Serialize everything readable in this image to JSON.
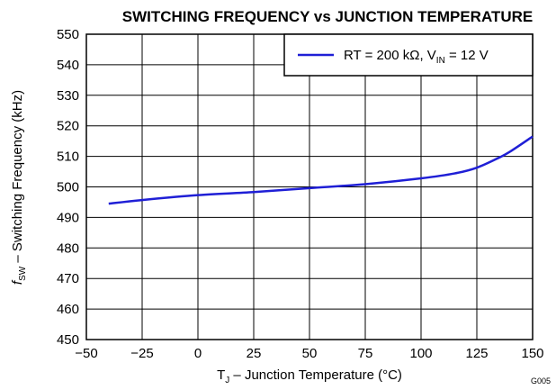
{
  "chart_data": {
    "type": "line",
    "title": "SWITCHING FREQUENCY vs JUNCTION TEMPERATURE",
    "xlabel": {
      "main": "T",
      "sub": "J",
      "rest": " – Junction Temperature (°C)"
    },
    "ylabel": {
      "main": "f",
      "sub": "SW",
      "rest": " – Switching Frequency (kHz)"
    },
    "xlim": [
      -50,
      150
    ],
    "ylim": [
      450,
      550
    ],
    "xticks": [
      -50,
      -25,
      0,
      25,
      50,
      75,
      100,
      125,
      150
    ],
    "xtick_labels": [
      "−50",
      "−25",
      "0",
      "25",
      "50",
      "75",
      "100",
      "125",
      "150"
    ],
    "yticks": [
      450,
      460,
      470,
      480,
      490,
      500,
      510,
      520,
      530,
      540,
      550
    ],
    "ytick_labels": [
      "450",
      "460",
      "470",
      "480",
      "490",
      "500",
      "510",
      "520",
      "530",
      "540",
      "550"
    ],
    "grid": true,
    "legend_position": "top-right",
    "series": [
      {
        "name": "RT = 200 kΩ, V_IN = 12 V",
        "legend": {
          "pre": "RT = 200 kΩ, V",
          "sub": "IN",
          "post": " = 12 V"
        },
        "color": "#1f1fd6",
        "x": [
          -40,
          -25,
          0,
          25,
          50,
          75,
          100,
          115,
          125,
          135,
          140,
          150
        ],
        "y": [
          494.5,
          495.7,
          497.3,
          498.3,
          499.6,
          500.9,
          502.8,
          504.4,
          506.3,
          509.6,
          511.6,
          516.5
        ]
      }
    ],
    "annotations": [
      "G005"
    ]
  }
}
